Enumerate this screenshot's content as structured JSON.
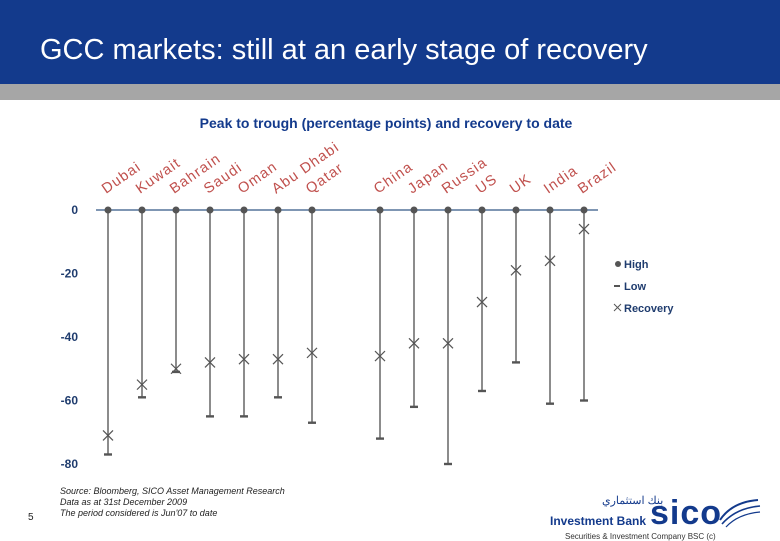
{
  "slide": {
    "title": "GCC markets: still at an early stage of recovery",
    "page_number": "5",
    "source_lines": [
      "Source: Bloomberg, SICO Asset Management Research",
      "Data as at 31st December 2009",
      "The period considered is Jun'07 to date"
    ],
    "logo": {
      "arabic_text": "بنك استثماري",
      "bank_text": "Investment Bank",
      "wordmark": "sico",
      "caption": "Securities & Investment Company BSC (c)"
    }
  },
  "colors": {
    "header": "#133a8c",
    "header_strip": "#a6a6a6",
    "chart_title": "#133a8c",
    "category_labels": "#c0504d",
    "axis_ticks": "#1f3c6e",
    "baseline": "#7f96b3",
    "bars": "#707070",
    "markers": "#555555"
  },
  "chart_data": {
    "type": "range",
    "title": "Peak to trough (percentage points) and recovery to date",
    "categories": [
      "Dubai",
      "Kuwait",
      "Bahrain",
      "Saudi",
      "Oman",
      "Abu Dhabi",
      "Qatar",
      "China",
      "Japan",
      "Russia",
      "US",
      "UK",
      "India",
      "Brazil"
    ],
    "series": [
      {
        "name": "High",
        "marker": "dot",
        "values": [
          0,
          0,
          0,
          0,
          0,
          0,
          0,
          0,
          0,
          0,
          0,
          0,
          0,
          0
        ]
      },
      {
        "name": "Low",
        "marker": "dash",
        "values": [
          -77,
          -59,
          -51,
          -65,
          -65,
          -59,
          -67,
          -72,
          -62,
          -80,
          -57,
          -48,
          -61,
          -60
        ]
      },
      {
        "name": "Recovery",
        "marker": "x",
        "values": [
          -71,
          -55,
          -50,
          -48,
          -47,
          -47,
          -45,
          -46,
          -42,
          -42,
          -29,
          -19,
          -16,
          -6
        ]
      }
    ],
    "yticks": [
      "0",
      "-20",
      "-40",
      "-60",
      "-80"
    ],
    "ylim": [
      -80,
      0
    ],
    "legend": "right"
  }
}
